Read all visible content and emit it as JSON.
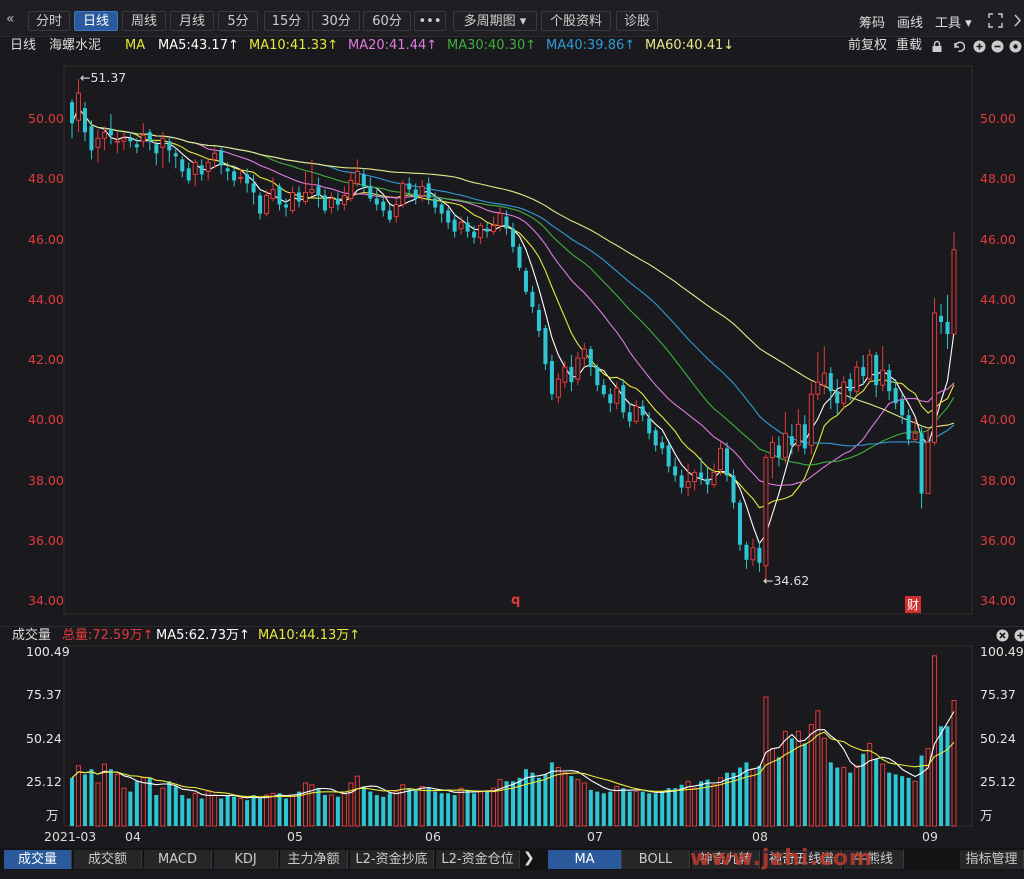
{
  "toolbar": {
    "collapse_icon": "«",
    "buttons": [
      "分时",
      "日线",
      "周线",
      "月线",
      "5分",
      "15分",
      "30分",
      "60分",
      "•••",
      "多周期图 ▾",
      "个股资料",
      "诊股"
    ],
    "active": "日线",
    "right": [
      "筹码",
      "画线",
      "工具 ▾"
    ]
  },
  "info": {
    "period": "日线",
    "stock_name": "海螺水泥",
    "indicator": "MA",
    "ma5": "MA5:43.17↑",
    "ma10": "MA10:41.33↑",
    "ma20": "MA20:41.44↑",
    "ma30": "MA30:40.30↑",
    "ma40": "MA40:39.86↑",
    "ma60": "MA60:40.41↓",
    "fq": "前复权",
    "reset": "重载"
  },
  "price_axis": [
    "50.00",
    "48.00",
    "46.00",
    "44.00",
    "42.00",
    "40.00",
    "38.00",
    "36.00",
    "34.00"
  ],
  "annotations": {
    "high": "←51.37",
    "low": "←34.62",
    "q_marker": "q",
    "cai_marker": "财"
  },
  "volume_info": {
    "label": "成交量",
    "total": "总量:72.59万↑",
    "ma5": "MA5:62.73万↑",
    "ma10": "MA10:44.13万↑"
  },
  "volume_axis": [
    "100.49",
    "75.37",
    "50.24",
    "25.12",
    "万"
  ],
  "dates": [
    "2021-03",
    "04",
    "05",
    "06",
    "07",
    "08",
    "09"
  ],
  "bottom_tabs": [
    "成交量",
    "成交额",
    "MACD",
    "KDJ",
    "主力净额",
    "L2-资金抄底",
    "L2-资金仓位",
    "MA",
    "BOLL",
    "神奇九转",
    "神奇五线谱",
    "牛熊线",
    "指标管理"
  ],
  "watermark": "www.jzhi.com",
  "colors": {
    "up": "#e03b3b",
    "down": "#2fc6d3",
    "ma5": "#ffffff",
    "ma10": "#e8e83a",
    "ma20": "#e07ae0",
    "ma30": "#3fae3f",
    "ma40": "#2f9bd8",
    "ma60": "#e8e88a"
  },
  "chart_data": {
    "type": "candlestick",
    "title": "海螺水泥 日线",
    "ylim": [
      33.6,
      51.8
    ],
    "volume_ylim": [
      0,
      100.49
    ],
    "candles": [
      [
        50.6,
        49.9,
        50.7,
        49.4,
        28
      ],
      [
        50.0,
        50.9,
        51.37,
        49.6,
        35
      ],
      [
        50.4,
        49.6,
        50.6,
        49.3,
        30
      ],
      [
        49.8,
        49.0,
        50.0,
        48.7,
        33
      ],
      [
        49.1,
        49.4,
        49.7,
        48.6,
        25
      ],
      [
        49.4,
        49.6,
        49.8,
        49.0,
        36
      ],
      [
        49.7,
        49.5,
        50.2,
        49.2,
        33
      ],
      [
        49.3,
        49.3,
        49.6,
        48.9,
        30
      ],
      [
        49.3,
        49.4,
        49.6,
        49.0,
        22
      ],
      [
        49.4,
        49.3,
        49.6,
        49.1,
        20
      ],
      [
        49.2,
        49.1,
        49.4,
        48.9,
        26
      ],
      [
        49.3,
        49.5,
        49.9,
        49.1,
        28
      ],
      [
        49.6,
        49.3,
        49.7,
        49.0,
        28
      ],
      [
        49.2,
        48.9,
        49.3,
        48.5,
        18
      ],
      [
        49.1,
        49.4,
        49.6,
        48.4,
        22
      ],
      [
        49.3,
        49.0,
        49.4,
        48.6,
        26
      ],
      [
        48.9,
        48.8,
        49.1,
        48.4,
        23
      ],
      [
        48.7,
        48.3,
        48.8,
        48.1,
        18
      ],
      [
        48.4,
        48.0,
        48.6,
        47.9,
        16
      ],
      [
        48.2,
        48.6,
        48.7,
        47.8,
        19
      ],
      [
        48.5,
        48.2,
        48.7,
        48.0,
        16
      ],
      [
        48.3,
        48.6,
        48.7,
        48.0,
        20
      ],
      [
        48.7,
        48.9,
        49.1,
        48.4,
        18
      ],
      [
        49.0,
        48.5,
        49.1,
        48.2,
        16
      ],
      [
        48.4,
        48.3,
        48.6,
        48.0,
        18
      ],
      [
        48.3,
        48.0,
        48.5,
        47.8,
        17
      ],
      [
        48.1,
        48.1,
        48.4,
        47.9,
        16
      ],
      [
        48.2,
        47.9,
        48.4,
        47.6,
        15
      ],
      [
        47.9,
        47.6,
        48.2,
        47.2,
        18
      ],
      [
        47.5,
        46.9,
        47.6,
        46.7,
        16
      ],
      [
        46.9,
        47.5,
        47.7,
        46.8,
        18
      ],
      [
        47.4,
        47.7,
        48.1,
        47.3,
        19
      ],
      [
        47.8,
        47.2,
        47.9,
        47.0,
        19
      ],
      [
        47.2,
        47.1,
        47.4,
        46.8,
        16
      ],
      [
        47.0,
        47.6,
        47.8,
        46.9,
        18
      ],
      [
        47.6,
        47.3,
        47.8,
        47.1,
        20
      ],
      [
        47.3,
        47.6,
        48.3,
        47.2,
        25
      ],
      [
        47.6,
        47.7,
        48.7,
        47.5,
        24
      ],
      [
        47.8,
        47.5,
        48.1,
        47.1,
        22
      ],
      [
        47.5,
        47.0,
        47.7,
        46.9,
        18
      ],
      [
        47.1,
        47.4,
        47.6,
        46.9,
        18
      ],
      [
        47.4,
        47.2,
        47.6,
        47.0,
        17
      ],
      [
        47.2,
        47.5,
        47.8,
        47.0,
        19
      ],
      [
        47.4,
        48.0,
        48.3,
        47.3,
        25
      ],
      [
        47.9,
        48.3,
        48.7,
        47.8,
        29
      ],
      [
        48.2,
        47.8,
        48.4,
        47.6,
        23
      ],
      [
        47.8,
        47.4,
        48.1,
        47.3,
        20
      ],
      [
        47.4,
        47.2,
        47.7,
        47.0,
        18
      ],
      [
        47.3,
        47.0,
        47.5,
        46.8,
        17
      ],
      [
        47.0,
        46.7,
        47.2,
        46.6,
        19
      ],
      [
        46.8,
        47.2,
        47.4,
        46.6,
        20
      ],
      [
        47.2,
        47.9,
        48.0,
        47.1,
        24
      ],
      [
        47.9,
        47.7,
        48.1,
        47.5,
        22
      ],
      [
        47.7,
        47.4,
        47.9,
        47.2,
        21
      ],
      [
        47.5,
        47.8,
        48.0,
        47.3,
        23
      ],
      [
        47.9,
        47.4,
        48.1,
        47.2,
        22
      ],
      [
        47.4,
        47.1,
        47.6,
        46.9,
        20
      ],
      [
        47.2,
        46.9,
        47.4,
        46.6,
        19
      ],
      [
        47.0,
        46.6,
        47.1,
        46.4,
        19
      ],
      [
        46.7,
        46.3,
        46.9,
        46.1,
        18
      ],
      [
        46.4,
        46.6,
        46.8,
        46.2,
        22
      ],
      [
        46.6,
        46.3,
        46.8,
        46.1,
        21
      ],
      [
        46.3,
        46.1,
        46.5,
        45.9,
        19
      ],
      [
        46.1,
        46.5,
        46.6,
        45.9,
        20
      ],
      [
        46.4,
        46.3,
        46.6,
        46.1,
        20
      ],
      [
        46.3,
        46.5,
        46.8,
        46.2,
        22
      ],
      [
        46.5,
        46.9,
        47.1,
        46.3,
        27
      ],
      [
        46.8,
        46.4,
        47.0,
        46.2,
        26
      ],
      [
        46.4,
        45.8,
        46.6,
        45.6,
        26
      ],
      [
        45.8,
        45.1,
        45.9,
        45.0,
        28
      ],
      [
        45.0,
        44.3,
        45.1,
        44.2,
        33
      ],
      [
        44.3,
        43.8,
        44.5,
        43.6,
        31
      ],
      [
        43.7,
        43.0,
        43.9,
        42.8,
        28
      ],
      [
        43.1,
        41.9,
        43.2,
        41.7,
        30
      ],
      [
        42.0,
        40.9,
        42.2,
        40.7,
        37
      ],
      [
        40.8,
        41.4,
        41.6,
        40.6,
        34
      ],
      [
        41.3,
        41.8,
        42.0,
        41.1,
        31
      ],
      [
        41.8,
        41.3,
        42.2,
        41.0,
        29
      ],
      [
        41.4,
        42.1,
        42.3,
        41.2,
        27
      ],
      [
        42.1,
        42.4,
        42.6,
        41.8,
        25
      ],
      [
        42.4,
        41.8,
        42.5,
        41.5,
        21
      ],
      [
        41.8,
        41.2,
        41.9,
        41.0,
        20
      ],
      [
        41.2,
        40.9,
        41.4,
        40.8,
        19
      ],
      [
        40.9,
        40.6,
        41.1,
        40.3,
        20
      ],
      [
        40.6,
        41.1,
        41.3,
        40.4,
        23
      ],
      [
        41.2,
        40.3,
        41.4,
        40.1,
        22
      ],
      [
        40.3,
        40.0,
        40.6,
        39.8,
        20
      ],
      [
        40.0,
        40.5,
        40.7,
        39.9,
        20
      ],
      [
        40.5,
        40.2,
        40.7,
        40.0,
        20
      ],
      [
        40.1,
        39.6,
        40.3,
        39.4,
        19
      ],
      [
        39.7,
        39.2,
        39.8,
        39.0,
        19
      ],
      [
        39.3,
        39.1,
        39.5,
        38.9,
        20
      ],
      [
        39.2,
        38.5,
        39.3,
        38.3,
        22
      ],
      [
        38.5,
        38.2,
        38.8,
        38.0,
        22
      ],
      [
        38.2,
        37.8,
        38.4,
        37.6,
        24
      ],
      [
        37.8,
        38.0,
        38.6,
        37.5,
        26
      ],
      [
        38.0,
        38.3,
        38.4,
        37.7,
        22
      ],
      [
        38.3,
        38.1,
        38.8,
        37.9,
        26
      ],
      [
        38.1,
        37.9,
        38.5,
        37.6,
        27
      ],
      [
        37.9,
        38.3,
        38.6,
        37.8,
        24
      ],
      [
        38.4,
        39.1,
        39.3,
        38.2,
        28
      ],
      [
        39.1,
        38.2,
        39.3,
        38.0,
        31
      ],
      [
        38.2,
        37.3,
        38.4,
        37.1,
        31
      ],
      [
        37.3,
        35.9,
        37.4,
        35.7,
        34
      ],
      [
        35.9,
        35.4,
        36.0,
        35.1,
        37
      ],
      [
        35.4,
        35.8,
        36.1,
        35.2,
        33
      ],
      [
        35.8,
        35.3,
        36.0,
        35.0,
        35
      ],
      [
        35.2,
        38.8,
        38.9,
        34.62,
        75
      ],
      [
        38.8,
        39.3,
        39.5,
        38.1,
        45
      ],
      [
        39.2,
        38.8,
        39.5,
        38.5,
        40
      ],
      [
        38.8,
        39.6,
        40.3,
        38.6,
        55
      ],
      [
        39.5,
        39.2,
        39.9,
        38.9,
        51
      ],
      [
        39.2,
        39.9,
        40.4,
        39.0,
        55
      ],
      [
        39.9,
        39.1,
        40.2,
        38.9,
        48
      ],
      [
        39.2,
        40.9,
        41.3,
        38.9,
        59
      ],
      [
        40.9,
        41.3,
        42.3,
        40.7,
        67
      ],
      [
        41.2,
        41.6,
        42.5,
        40.9,
        51
      ],
      [
        41.6,
        41.0,
        41.8,
        40.4,
        37
      ],
      [
        41.0,
        40.6,
        41.4,
        40.2,
        34
      ],
      [
        40.6,
        41.3,
        41.5,
        40.4,
        34
      ],
      [
        41.4,
        41.0,
        41.6,
        40.7,
        31
      ],
      [
        41.0,
        41.8,
        42.0,
        40.9,
        35
      ],
      [
        41.8,
        41.5,
        42.2,
        41.2,
        42
      ],
      [
        41.4,
        42.2,
        42.4,
        41.3,
        48
      ],
      [
        42.2,
        41.2,
        42.3,
        40.8,
        39
      ],
      [
        41.2,
        41.7,
        42.5,
        41.0,
        36
      ],
      [
        41.7,
        41.0,
        41.9,
        40.7,
        31
      ],
      [
        41.1,
        40.6,
        41.4,
        40.4,
        30
      ],
      [
        40.7,
        40.2,
        40.9,
        39.9,
        29
      ],
      [
        40.2,
        39.4,
        40.4,
        39.2,
        28
      ],
      [
        39.4,
        39.6,
        40.1,
        39.3,
        26
      ],
      [
        39.6,
        37.6,
        39.8,
        37.1,
        41
      ],
      [
        37.6,
        39.3,
        39.8,
        37.6,
        45
      ],
      [
        39.3,
        43.6,
        44.1,
        39.2,
        99
      ],
      [
        43.5,
        43.3,
        43.9,
        42.9,
        58
      ],
      [
        43.3,
        42.9,
        44.2,
        42.4,
        58
      ],
      [
        42.9,
        45.7,
        46.3,
        42.9,
        73
      ]
    ]
  }
}
